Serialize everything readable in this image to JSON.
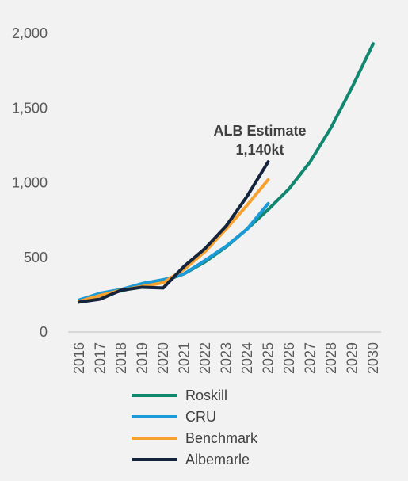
{
  "chart_data": {
    "type": "line",
    "title": "",
    "xlabel": "",
    "ylabel": "",
    "x": [
      "2016",
      "2017",
      "2018",
      "2019",
      "2020",
      "2021",
      "2022",
      "2023",
      "2024",
      "2025",
      "2026",
      "2027",
      "2028",
      "2029",
      "2030"
    ],
    "ylim": [
      0,
      2000
    ],
    "yticks": [
      0,
      500,
      1000,
      1500,
      2000
    ],
    "ytick_labels": [
      "0",
      "500",
      "1,000",
      "1,500",
      "2,000"
    ],
    "grid": false,
    "legend_position": "bottom",
    "series": [
      {
        "name": "Roskill",
        "color": "#12876f",
        "values": [
          210,
          250,
          275,
          310,
          340,
          390,
          470,
          570,
          690,
          820,
          960,
          1140,
          1370,
          1640,
          1930
        ]
      },
      {
        "name": "CRU",
        "color": "#1a9bd7",
        "values": [
          215,
          260,
          285,
          325,
          350,
          390,
          480,
          575,
          690,
          860,
          null,
          null,
          null,
          null,
          null
        ]
      },
      {
        "name": "Benchmark",
        "color": "#f7a12f",
        "values": [
          205,
          245,
          280,
          305,
          330,
          420,
          540,
          690,
          850,
          1020,
          null,
          null,
          null,
          null,
          null
        ]
      },
      {
        "name": "Albemarle",
        "color": "#14243d",
        "values": [
          200,
          220,
          280,
          300,
          295,
          440,
          560,
          710,
          910,
          1140,
          null,
          null,
          null,
          null,
          null
        ]
      }
    ],
    "annotations": [
      {
        "text_line1": "ALB Estimate",
        "text_line2": "1,140kt",
        "x": "2025",
        "y": 1140
      }
    ]
  }
}
